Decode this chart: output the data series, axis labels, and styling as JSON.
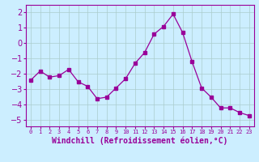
{
  "x": [
    0,
    1,
    2,
    3,
    4,
    5,
    6,
    7,
    8,
    9,
    10,
    11,
    12,
    13,
    14,
    15,
    16,
    17,
    18,
    19,
    20,
    21,
    22,
    23
  ],
  "y": [
    -2.4,
    -1.8,
    -2.2,
    -2.1,
    -1.7,
    -2.5,
    -2.8,
    -3.6,
    -3.5,
    -2.9,
    -2.3,
    -1.3,
    -0.6,
    0.6,
    1.1,
    1.9,
    0.7,
    -1.2,
    -2.9,
    -3.5,
    -4.2,
    -4.2,
    -4.5,
    -4.7
  ],
  "line_color": "#990099",
  "marker": "s",
  "marker_size": 2.5,
  "xlabel": "Windchill (Refroidissement éolien,°C)",
  "xlabel_fontsize": 7,
  "ylabel_ticks": [
    -5,
    -4,
    -3,
    -2,
    -1,
    0,
    1,
    2
  ],
  "xtick_labels": [
    "0",
    "1",
    "2",
    "3",
    "4",
    "5",
    "6",
    "7",
    "8",
    "9",
    "10",
    "11",
    "12",
    "13",
    "14",
    "15",
    "16",
    "17",
    "18",
    "19",
    "20",
    "21",
    "22",
    "23"
  ],
  "ylim": [
    -5.4,
    2.5
  ],
  "xlim": [
    -0.5,
    23.5
  ],
  "bg_color": "#cceeff",
  "grid_color": "#aacccc",
  "tick_color": "#990099",
  "label_color": "#990099"
}
